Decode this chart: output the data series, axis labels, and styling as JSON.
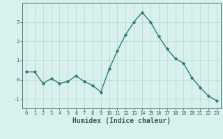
{
  "x": [
    0,
    1,
    2,
    3,
    4,
    5,
    6,
    7,
    8,
    9,
    10,
    11,
    12,
    13,
    14,
    15,
    16,
    17,
    18,
    19,
    20,
    21,
    22,
    23
  ],
  "y": [
    0.4,
    0.4,
    -0.2,
    0.05,
    -0.2,
    -0.1,
    0.2,
    -0.1,
    -0.3,
    -0.65,
    0.55,
    1.5,
    2.35,
    3.0,
    3.5,
    3.0,
    2.25,
    1.6,
    1.1,
    0.85,
    0.1,
    -0.4,
    -0.85,
    -1.1
  ],
  "line_color": "#2e7d6e",
  "marker": "D",
  "marker_size": 1.8,
  "bg_color": "#d8f0ee",
  "grid_color": "#b8d4d0",
  "tick_color": "#2e5c54",
  "xlabel": "Humidex (Indice chaleur)",
  "xlabel_fontsize": 7,
  "yticks": [
    -1,
    0,
    1,
    2,
    3
  ],
  "xticks": [
    0,
    1,
    2,
    3,
    4,
    5,
    6,
    7,
    8,
    9,
    10,
    11,
    12,
    13,
    14,
    15,
    16,
    17,
    18,
    19,
    20,
    21,
    22,
    23
  ],
  "ylim": [
    -1.5,
    4.0
  ],
  "xlim": [
    -0.5,
    23.5
  ],
  "tick_fontsize": 5,
  "linewidth": 1.0
}
